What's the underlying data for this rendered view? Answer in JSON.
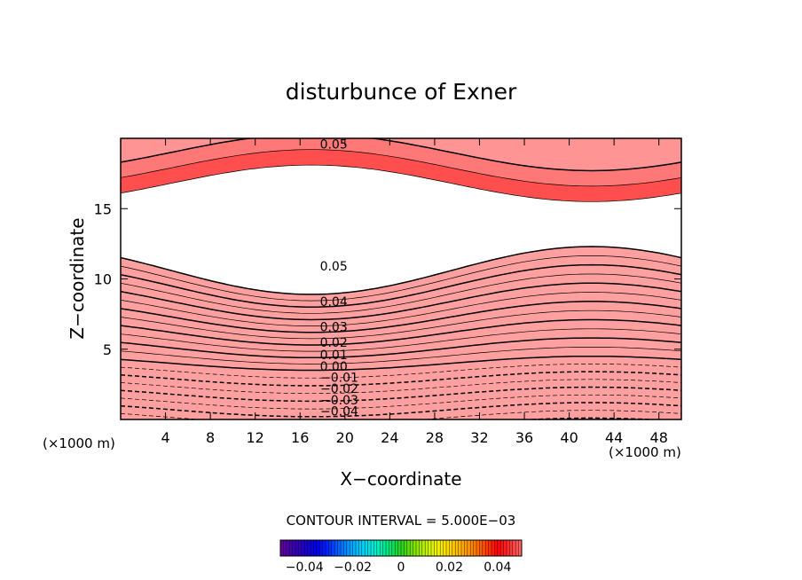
{
  "chart_data": {
    "type": "heatmap",
    "title": "disturbunce of Exner",
    "xlabel": "X−coordinate",
    "ylabel": "Z−coordinate",
    "x_unit_left": "(×1000 m)",
    "x_unit_right": "(×1000 m)",
    "xlim": [
      0,
      50
    ],
    "ylim": [
      0,
      20
    ],
    "x_ticks": [
      4,
      8,
      12,
      16,
      20,
      24,
      28,
      32,
      36,
      40,
      44,
      48
    ],
    "x_tick_labels": [
      "4",
      "8",
      "12",
      "16",
      "20",
      "24",
      "28",
      "32",
      "36",
      "40",
      "44",
      "48"
    ],
    "y_ticks": [
      5,
      10,
      15
    ],
    "y_tick_labels": [
      "5",
      "10",
      "15"
    ],
    "contour_interval_text": "CONTOUR INTERVAL = 5.000E−03",
    "contour_interval": 0.005,
    "color_range": [
      -0.05,
      0.05
    ],
    "colorbar_ticks": [
      -0.04,
      -0.02,
      0,
      0.02,
      0.04
    ],
    "colorbar_tick_labels": [
      "−0.04",
      "−0.02",
      "0",
      "0.02",
      "0.04"
    ],
    "contour_labels": [
      {
        "text": "0.05",
        "x": 19,
        "z": 19.6
      },
      {
        "text": "0.05",
        "x": 19,
        "z": 10.9
      },
      {
        "text": "0.04",
        "x": 19,
        "z": 8.4
      },
      {
        "text": "0.03",
        "x": 19,
        "z": 6.6
      },
      {
        "text": "0.02",
        "x": 19,
        "z": 5.5
      },
      {
        "text": "0.01",
        "x": 19,
        "z": 4.6
      },
      {
        "text": "0.00",
        "x": 19,
        "z": 3.8
      },
      {
        "text": "−0.01",
        "x": 19.5,
        "z": 3.0
      },
      {
        "text": "−0.02",
        "x": 19.5,
        "z": 2.2
      },
      {
        "text": "−0.03",
        "x": 19.5,
        "z": 1.4
      },
      {
        "text": "−0.04",
        "x": 19.5,
        "z": 0.6
      }
    ],
    "grid": false
  }
}
